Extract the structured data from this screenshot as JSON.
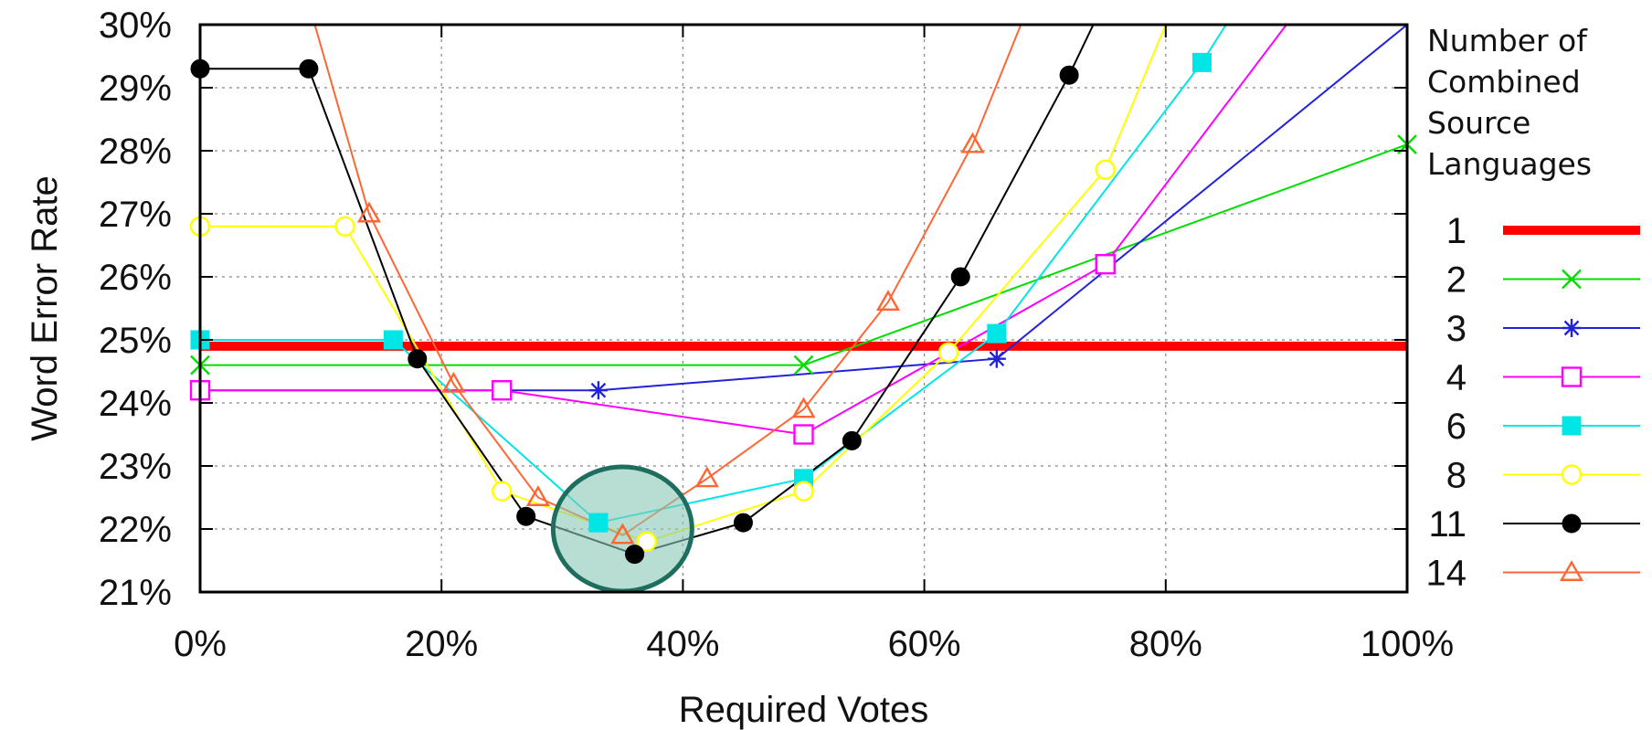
{
  "chart_data": {
    "type": "line",
    "xlabel": "Required Votes",
    "ylabel": "Word Error Rate",
    "xlim": [
      0,
      100
    ],
    "ylim": [
      21,
      30
    ],
    "x_ticks": [
      "0%",
      "20%",
      "40%",
      "60%",
      "80%",
      "100%"
    ],
    "y_ticks": [
      "21%",
      "22%",
      "23%",
      "24%",
      "25%",
      "26%",
      "27%",
      "28%",
      "29%",
      "30%"
    ],
    "grid": true,
    "legend_title": "Number of Combined Source Languages",
    "legend_title_lines": [
      "Number of",
      "Combined",
      "Source",
      "Languages"
    ],
    "legend_position": "right",
    "series": [
      {
        "name": "1",
        "color": "#ff0000",
        "marker": "none",
        "thick": true,
        "points": [
          [
            0,
            24.9
          ],
          [
            100,
            24.9
          ]
        ]
      },
      {
        "name": "2",
        "color": "#00dd00",
        "marker": "x",
        "points": [
          [
            0,
            24.6
          ],
          [
            50,
            24.6
          ],
          [
            100,
            28.1
          ]
        ]
      },
      {
        "name": "3",
        "color": "#2222dd",
        "marker": "star",
        "points": [
          [
            0,
            24.2
          ],
          [
            33,
            24.2
          ],
          [
            66,
            24.7
          ],
          [
            100,
            30
          ]
        ]
      },
      {
        "name": "4",
        "color": "#ff00ff",
        "marker": "open-square",
        "points": [
          [
            0,
            24.2
          ],
          [
            25,
            24.2
          ],
          [
            50,
            23.5
          ],
          [
            75,
            26.2
          ],
          [
            90,
            30
          ]
        ]
      },
      {
        "name": "6",
        "color": "#00e5e5",
        "marker": "filled-square",
        "points": [
          [
            0,
            25.0
          ],
          [
            16,
            25.0
          ],
          [
            33,
            22.1
          ],
          [
            50,
            22.8
          ],
          [
            66,
            25.1
          ],
          [
            83,
            29.4
          ],
          [
            85,
            30
          ]
        ]
      },
      {
        "name": "8",
        "color": "#ffff00",
        "marker": "open-circle",
        "points": [
          [
            0,
            26.8
          ],
          [
            12,
            26.8
          ],
          [
            25,
            22.6
          ],
          [
            37,
            21.8
          ],
          [
            50,
            22.6
          ],
          [
            62,
            24.8
          ],
          [
            75,
            27.7
          ],
          [
            80,
            30
          ]
        ]
      },
      {
        "name": "11",
        "color": "#000000",
        "marker": "filled-circle",
        "points": [
          [
            0,
            29.3
          ],
          [
            9,
            29.3
          ],
          [
            18,
            24.7
          ],
          [
            27,
            22.2
          ],
          [
            36,
            21.6
          ],
          [
            45,
            22.1
          ],
          [
            54,
            23.4
          ],
          [
            63,
            26.0
          ],
          [
            72,
            29.2
          ],
          [
            74,
            30
          ]
        ]
      },
      {
        "name": "14",
        "color": "#ff6633",
        "marker": "open-triangle",
        "points": [
          [
            9.5,
            30
          ],
          [
            14,
            27.0
          ],
          [
            21,
            24.3
          ],
          [
            28,
            22.5
          ],
          [
            35,
            21.9
          ],
          [
            42,
            22.8
          ],
          [
            50,
            23.9
          ],
          [
            57,
            25.6
          ],
          [
            64,
            28.1
          ],
          [
            68,
            30
          ]
        ]
      }
    ],
    "highlight": {
      "shape": "circle",
      "center": [
        35,
        22.0
      ],
      "fill": "#88c8b8",
      "stroke": "#1e6e60"
    }
  }
}
